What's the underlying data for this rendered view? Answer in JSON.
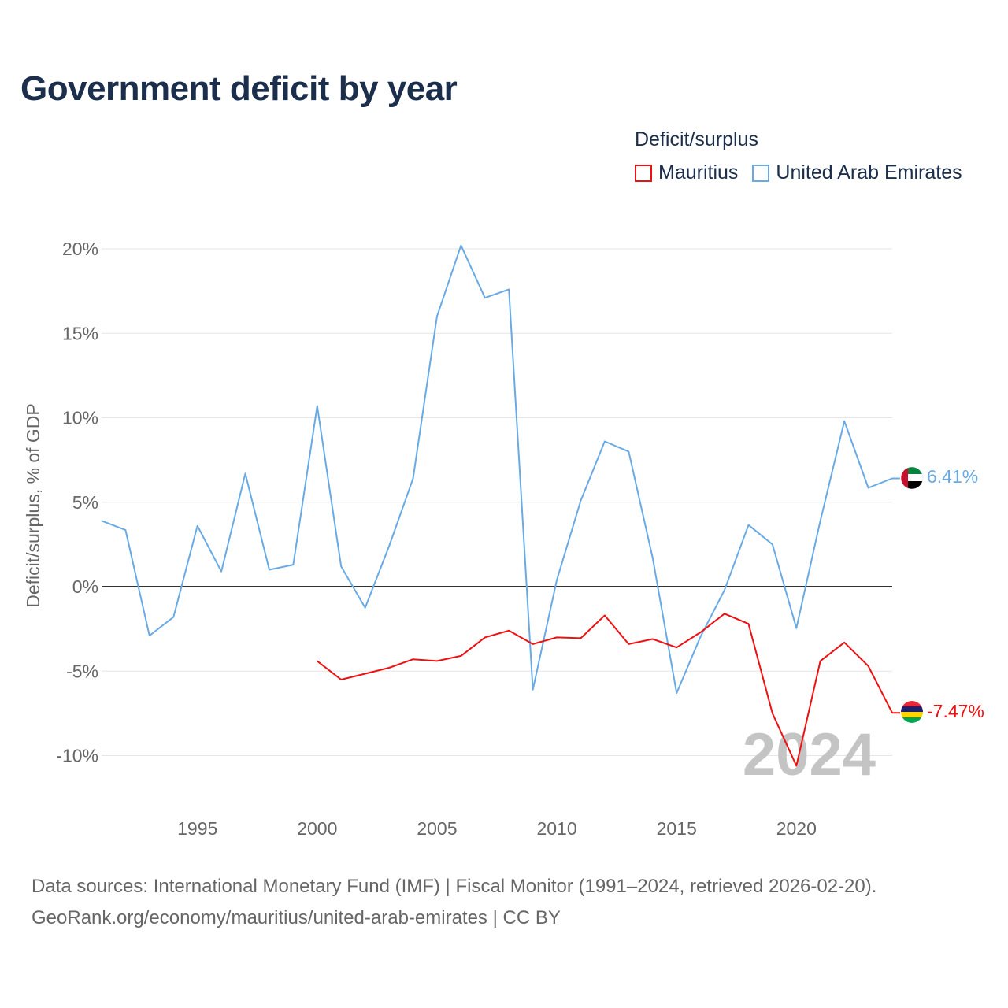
{
  "title": "Government deficit by year",
  "legend": {
    "title": "Deficit/surplus",
    "items": [
      {
        "label": "Mauritius",
        "color": "#ee1111"
      },
      {
        "label": "United Arab Emirates",
        "color": "#6aaae4"
      }
    ]
  },
  "watermark_year": "2024",
  "chart_data": {
    "type": "line",
    "ylabel": "Deficit/surplus, % of GDP",
    "xlabel": "",
    "xlim": [
      1991,
      2024
    ],
    "ylim": [
      -12,
      21
    ],
    "xticks": [
      1995,
      2000,
      2005,
      2010,
      2015,
      2020
    ],
    "yticks": [
      20,
      15,
      10,
      5,
      0,
      -5,
      -10
    ],
    "ytick_labels": [
      "20%",
      "15%",
      "10%",
      "5%",
      "0%",
      "-5%",
      "-10%"
    ],
    "series": [
      {
        "name": "Mauritius",
        "color": "#ee1111",
        "end_label": "-7.47%",
        "x": [
          2000,
          2001,
          2002,
          2003,
          2004,
          2005,
          2006,
          2007,
          2008,
          2009,
          2010,
          2011,
          2012,
          2013,
          2014,
          2015,
          2016,
          2017,
          2018,
          2019,
          2020,
          2021,
          2022,
          2023,
          2024
        ],
        "values": [
          -4.4,
          -5.5,
          -5.15,
          -4.8,
          -4.3,
          -4.4,
          -4.1,
          -3.0,
          -2.6,
          -3.4,
          -3.0,
          -3.05,
          -1.7,
          -3.4,
          -3.1,
          -3.6,
          -2.7,
          -1.6,
          -2.2,
          -7.5,
          -10.6,
          -4.4,
          -3.3,
          -4.7,
          -7.47
        ]
      },
      {
        "name": "United Arab Emirates",
        "color": "#6aaae4",
        "end_label": "6.41%",
        "x": [
          1991,
          1992,
          1993,
          1994,
          1995,
          1996,
          1997,
          1998,
          1999,
          2000,
          2001,
          2002,
          2003,
          2004,
          2005,
          2006,
          2007,
          2008,
          2009,
          2010,
          2011,
          2012,
          2013,
          2014,
          2015,
          2016,
          2017,
          2018,
          2019,
          2020,
          2021,
          2022,
          2023,
          2024
        ],
        "values": [
          3.9,
          3.35,
          -2.9,
          -1.8,
          3.6,
          0.9,
          6.7,
          1.0,
          1.3,
          10.7,
          1.2,
          -1.25,
          2.4,
          6.4,
          16.0,
          20.2,
          17.1,
          17.6,
          -6.1,
          0.4,
          5.1,
          8.6,
          8.0,
          1.7,
          -6.3,
          -2.95,
          -0.2,
          3.65,
          2.5,
          -2.45,
          3.9,
          9.8,
          5.85,
          6.41
        ]
      }
    ]
  },
  "footer": {
    "line1": "Data sources: International Monetary Fund (IMF) | Fiscal Monitor (1991–2024, retrieved 2026-02-20).",
    "line2": "GeoRank.org/economy/mauritius/united-arab-emirates | CC BY"
  }
}
